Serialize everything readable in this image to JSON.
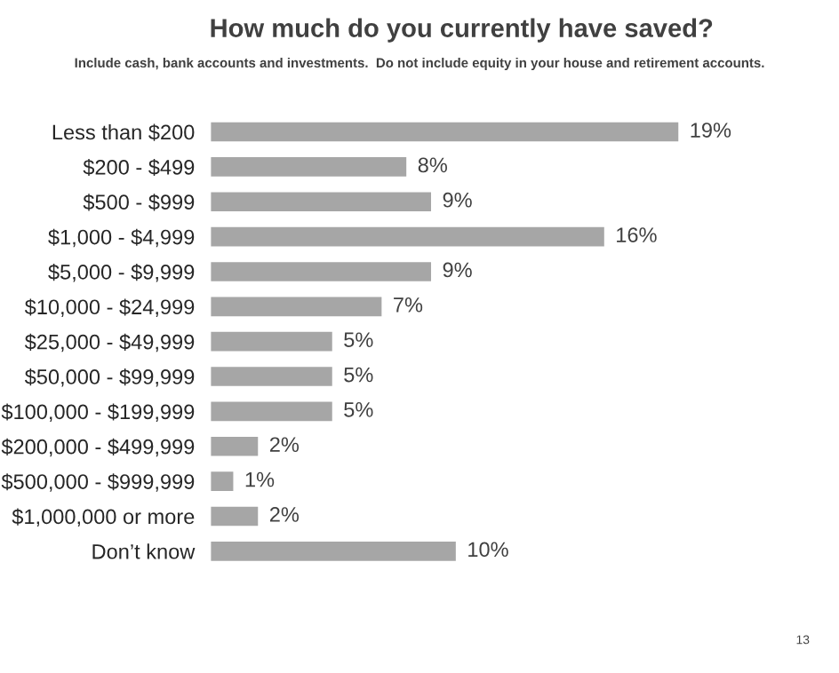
{
  "chart_data": {
    "type": "bar",
    "orientation": "horizontal",
    "title": "How much do you currently have saved?",
    "subtitle": "Include cash, bank accounts and investments.  Do not include equity in your house and retirement accounts.",
    "categories": [
      "Less than $200",
      "$200 - $499",
      "$500 - $999",
      "$1,000 - $4,999",
      "$5,000 - $9,999",
      "$10,000 - $24,999",
      "$25,000 - $49,999",
      "$50,000 - $99,999",
      "$100,000 - $199,999",
      "$200,000 - $499,999",
      "$500,000 - $999,999",
      "$1,000,000 or more",
      "Don’t know"
    ],
    "values": [
      19,
      8,
      9,
      16,
      9,
      7,
      5,
      5,
      5,
      2,
      1,
      2,
      10
    ],
    "value_labels": [
      "19%",
      "8%",
      "9%",
      "16%",
      "9%",
      "7%",
      "5%",
      "5%",
      "5%",
      "2%",
      "1%",
      "2%",
      "10%"
    ],
    "color": "#a6a6a6",
    "annotations": [
      "13"
    ]
  }
}
